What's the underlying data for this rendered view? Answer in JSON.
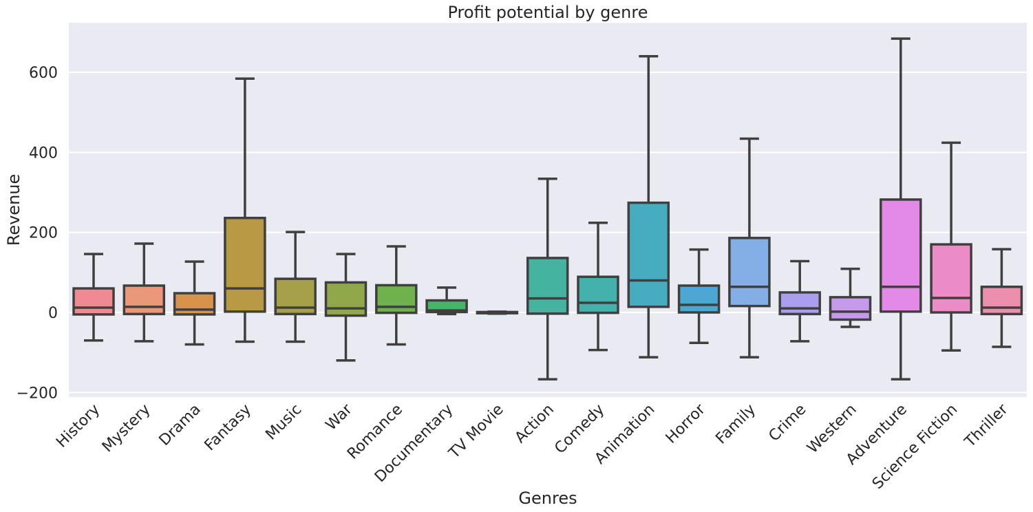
{
  "chart_data": {
    "type": "box",
    "title": "Profit potential by genre",
    "xlabel": "Genres",
    "ylabel": "Revenue",
    "ylim": [
      -210,
      720
    ],
    "yticks": [
      -200,
      0,
      200,
      400,
      600
    ],
    "ytick_labels": [
      "−200",
      "0",
      "200",
      "400",
      "600"
    ],
    "grid": true,
    "background": "#eaeaf2",
    "categories": [
      "History",
      "Mystery",
      "Drama",
      "Fantasy",
      "Music",
      "War",
      "Romance",
      "Documentary",
      "TV Movie",
      "Action",
      "Comedy",
      "Animation",
      "Horror",
      "Family",
      "Crime",
      "Western",
      "Adventure",
      "Science Fiction",
      "Thriller"
    ],
    "boxes": [
      {
        "whislo": -70,
        "q1": -5,
        "med": 12,
        "q3": 60,
        "whishi": 146,
        "color": "#f08a91"
      },
      {
        "whislo": -72,
        "q1": -4,
        "med": 14,
        "q3": 67,
        "whishi": 172,
        "color": "#eb977a"
      },
      {
        "whislo": -80,
        "q1": -5,
        "med": 7,
        "q3": 48,
        "whishi": 127,
        "color": "#d9924a"
      },
      {
        "whislo": -73,
        "q1": 2,
        "med": 60,
        "q3": 236,
        "whishi": 584,
        "color": "#b89a45"
      },
      {
        "whislo": -73,
        "q1": -4,
        "med": 12,
        "q3": 84,
        "whishi": 201,
        "color": "#a6a04a"
      },
      {
        "whislo": -120,
        "q1": -8,
        "med": 10,
        "q3": 75,
        "whishi": 146,
        "color": "#91a84a"
      },
      {
        "whislo": -80,
        "q1": -1,
        "med": 14,
        "q3": 68,
        "whishi": 165,
        "color": "#6fb14c"
      },
      {
        "whislo": -4,
        "q1": 1,
        "med": 5,
        "q3": 30,
        "whishi": 62,
        "color": "#47b567"
      },
      {
        "whislo": -3,
        "q1": -2,
        "med": 0,
        "q3": 1,
        "whishi": 2,
        "color": "#43b48f"
      },
      {
        "whislo": -167,
        "q1": -3,
        "med": 35,
        "q3": 136,
        "whishi": 334,
        "color": "#44b39f"
      },
      {
        "whislo": -94,
        "q1": -1,
        "med": 24,
        "q3": 89,
        "whishi": 224,
        "color": "#44b1ad"
      },
      {
        "whislo": -112,
        "q1": 14,
        "med": 80,
        "q3": 274,
        "whishi": 640,
        "color": "#46acc0"
      },
      {
        "whislo": -76,
        "q1": 0,
        "med": 19,
        "q3": 67,
        "whishi": 157,
        "color": "#4aa8d2"
      },
      {
        "whislo": -112,
        "q1": 16,
        "med": 64,
        "q3": 186,
        "whishi": 434,
        "color": "#83aee6"
      },
      {
        "whislo": -72,
        "q1": -4,
        "med": 10,
        "q3": 50,
        "whishi": 128,
        "color": "#ab9ef0"
      },
      {
        "whislo": -36,
        "q1": -18,
        "med": 2,
        "q3": 38,
        "whishi": 109,
        "color": "#c59aea"
      },
      {
        "whislo": -167,
        "q1": 2,
        "med": 64,
        "q3": 282,
        "whishi": 684,
        "color": "#e28ae6"
      },
      {
        "whislo": -95,
        "q1": 0,
        "med": 36,
        "q3": 170,
        "whishi": 424,
        "color": "#eb8cc7"
      },
      {
        "whislo": -86,
        "q1": -4,
        "med": 12,
        "q3": 64,
        "whishi": 158,
        "color": "#ec8faf"
      }
    ]
  }
}
